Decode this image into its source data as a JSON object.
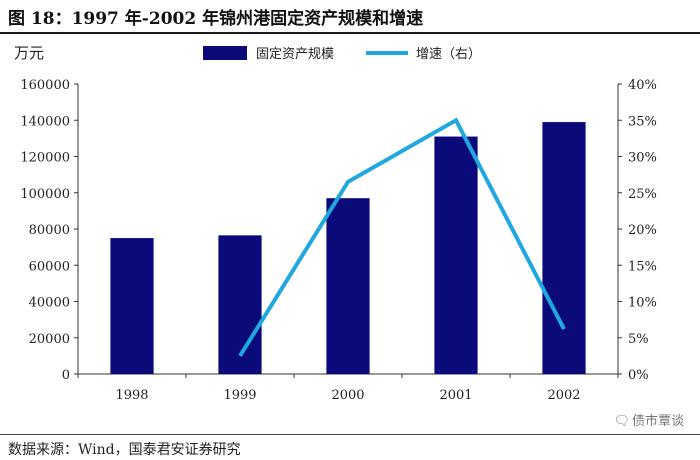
{
  "figure": {
    "title": "图  18：1997 年-2002 年锦州港固定资产规模和增速",
    "source": "数据来源：Wind，国泰君安证券研究",
    "watermark": "债市覃谈",
    "watermark_icon": "wechat-bubble-icon"
  },
  "chart_data": {
    "type": "bar+line",
    "title": "1997 年-2002 年锦州港固定资产规模和增速",
    "left_unit_label": "万元",
    "categories": [
      "1998",
      "1999",
      "2000",
      "2001",
      "2002"
    ],
    "series": [
      {
        "name": "固定资产规模",
        "type": "bar",
        "axis": "left",
        "values": [
          75000,
          76500,
          97000,
          131000,
          139000
        ],
        "color": "#0a0a7a"
      },
      {
        "name": "增速（右）",
        "type": "line",
        "axis": "right",
        "values": [
          null,
          2.5,
          26.5,
          35.0,
          6.2
        ],
        "color": "#1fa8e0"
      }
    ],
    "ylim_left": [
      0,
      160000
    ],
    "yticks_left": [
      "0",
      "20000",
      "40000",
      "60000",
      "80000",
      "100000",
      "120000",
      "140000",
      "160000"
    ],
    "ylim_right": [
      0,
      40
    ],
    "yticks_right": [
      "0%",
      "5%",
      "10%",
      "15%",
      "20%",
      "25%",
      "30%",
      "35%",
      "40%"
    ],
    "legend": "top-center",
    "grid": false
  }
}
